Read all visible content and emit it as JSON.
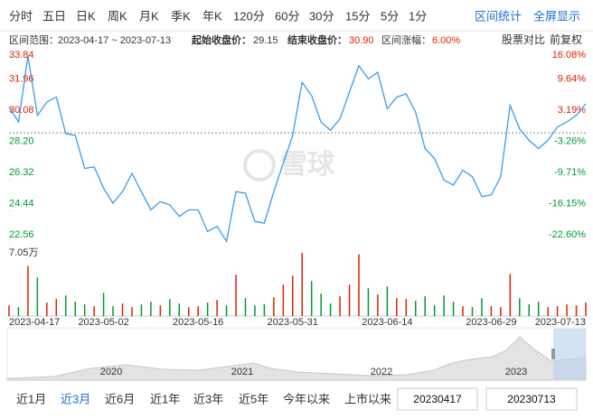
{
  "tabs": [
    "分时",
    "五日",
    "日K",
    "周K",
    "月K",
    "季K",
    "年K",
    "120分",
    "60分",
    "30分",
    "15分",
    "5分",
    "1分"
  ],
  "tools": [
    "区间统计",
    "全屏显示"
  ],
  "info": {
    "range_label": "区间范围：",
    "range": "2023-04-17 ~ 2023-07-13",
    "start_label": "起始收盘价：",
    "start": "29.15",
    "end_label": "结束收盘价：",
    "end": "30.90",
    "change_label": "区间涨幅：",
    "change": "6.00%"
  },
  "options": [
    "股票对比",
    "前复权"
  ],
  "watermark": "雪球",
  "chart_data": [
    {
      "type": "line",
      "color": "#3d9be9",
      "baseline": 29.15,
      "categories": [
        "2023-04-17",
        null,
        null,
        null,
        null,
        null,
        null,
        null,
        null,
        null,
        "2023-05-02",
        null,
        null,
        null,
        null,
        null,
        null,
        null,
        null,
        null,
        "2023-05-16",
        null,
        null,
        null,
        null,
        null,
        null,
        null,
        null,
        null,
        "2023-05-31",
        null,
        null,
        null,
        null,
        null,
        null,
        null,
        null,
        null,
        "2023-06-14",
        null,
        null,
        null,
        null,
        null,
        null,
        null,
        null,
        null,
        null,
        "2023-06-29",
        null,
        null,
        null,
        null,
        null,
        null,
        null,
        null,
        null,
        "2023-07-13"
      ],
      "values": [
        30.7,
        29.8,
        33.8,
        30.2,
        31.0,
        31.3,
        29.1,
        29.0,
        27.0,
        27.1,
        25.8,
        24.9,
        25.6,
        26.7,
        25.6,
        24.5,
        25.0,
        24.8,
        24.1,
        24.5,
        24.5,
        23.2,
        23.5,
        22.6,
        25.6,
        25.5,
        23.8,
        23.7,
        25.6,
        27.3,
        29.0,
        32.2,
        31.4,
        29.8,
        29.3,
        30.0,
        31.6,
        33.2,
        32.4,
        32.8,
        30.6,
        31.3,
        31.5,
        30.4,
        28.2,
        27.6,
        26.3,
        26.0,
        26.9,
        26.5,
        25.3,
        25.4,
        26.5,
        30.8,
        29.4,
        28.7,
        28.2,
        28.7,
        29.5,
        29.8,
        30.2,
        30.9
      ],
      "ylim": [
        22.56,
        33.84
      ],
      "yticks": [
        33.84,
        31.96,
        30.08,
        {
          "value": 28.2,
          "label": "28.20"
        },
        26.32,
        24.44,
        22.56
      ],
      "y2lim": [
        -22.6,
        16.08
      ],
      "y2ticks": [
        {
          "value": 16.08,
          "label": "16.08%"
        },
        {
          "value": 9.64,
          "label": "9.64%"
        },
        {
          "value": 3.19,
          "label": "3.19%"
        },
        {
          "value": -3.26,
          "label": "-3.26%"
        },
        {
          "value": -9.71,
          "label": "-9.71%"
        },
        {
          "value": -16.15,
          "label": "-16.15%"
        },
        {
          "value": -22.6,
          "label": "-22.60%"
        }
      ],
      "up_color": "#dd2200",
      "down_color": "#009933"
    },
    {
      "type": "bar",
      "values": [
        1.2,
        1.0,
        5.6,
        4.3,
        1.5,
        1.9,
        2.3,
        1.6,
        1.3,
        1.1,
        2.6,
        1.1,
        1.4,
        1.0,
        1.3,
        1.6,
        1.2,
        1.9,
        1.4,
        1.0,
        1.1,
        1.5,
        1.8,
        1.2,
        4.6,
        2.0,
        1.2,
        1.3,
        2.1,
        3.5,
        4.5,
        7.05,
        3.9,
        2.5,
        1.4,
        2.2,
        3.5,
        6.9,
        3.1,
        2.4,
        3.3,
        2.0,
        1.9,
        1.7,
        2.2,
        1.2,
        2.3,
        1.6,
        1.1,
        1.0,
        2.0,
        1.1,
        1.0,
        4.7,
        2.0,
        1.3,
        1.6,
        1.0,
        1.1,
        1.3,
        1.2,
        1.5
      ],
      "ylim": [
        0,
        7.05
      ],
      "yticks": [
        {
          "value": 7.05,
          "label": "7.05万"
        }
      ],
      "up_color": "#dd2200",
      "down_color": "#009933"
    }
  ],
  "navigator": {
    "years": [
      "2020",
      "2021",
      "2022",
      "2023"
    ]
  },
  "periods": [
    "近1月",
    "近3月",
    "近6月",
    "近1年",
    "近3年",
    "近5年",
    "今年以来",
    "上市以来"
  ],
  "active_period": 1,
  "date_from": "20230417",
  "date_to": "20230713"
}
